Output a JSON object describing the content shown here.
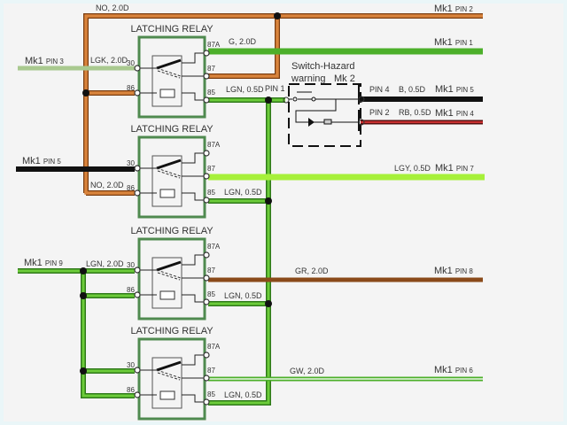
{
  "relay_title": "LATCHING RELAY",
  "relay_pins": {
    "p30": "30",
    "p86": "86",
    "p87a": "87A",
    "p87": "87",
    "p85": "85"
  },
  "switch": {
    "title": "Switch-Hazard",
    "subtitle": "warning",
    "ref": "Mk 2",
    "pin1": "PIN 1",
    "pin4": "PIN 4",
    "pin2": "PIN 2"
  },
  "wires": {
    "no_top": "NO, 2.0D",
    "no_lower": "NO, 2.0D",
    "g": "G, 2.0D",
    "lgk": "LGK, 2.0D",
    "lgn05_1": "LGN, 0.5D",
    "lgn05_2": "LGN, 0.5D",
    "lgn05_3": "LGN, 0.5D",
    "lgn05_4": "LGN, 0.5D",
    "b": "B, 0.5D",
    "rb": "RB, 0.5D",
    "lgy": "LGY, 0.5D",
    "lgn20": "LGN, 2.0D",
    "gr": "GR, 2.0D",
    "gw": "GW, 2.0D"
  },
  "connectors": {
    "mk1": "Mk1",
    "pin2": "PIN 2",
    "pin1": "PIN 1",
    "pin3": "PIN 3",
    "pin5a": "PIN 5",
    "pin5b": "PIN 5",
    "pin4": "PIN 4",
    "pin7": "PIN 7",
    "pin9": "PIN 9",
    "pin8": "PIN 8",
    "pin6": "PIN 6"
  },
  "colors": {
    "orange": "#c8702a",
    "green": "#4caf2a",
    "pale_green": "#a9c98f",
    "lime": "#a6f03a",
    "black": "#111111",
    "red_brown": "#8b1a1a",
    "brown": "#8a4a1a",
    "relay_box": "#4f8a4f"
  }
}
